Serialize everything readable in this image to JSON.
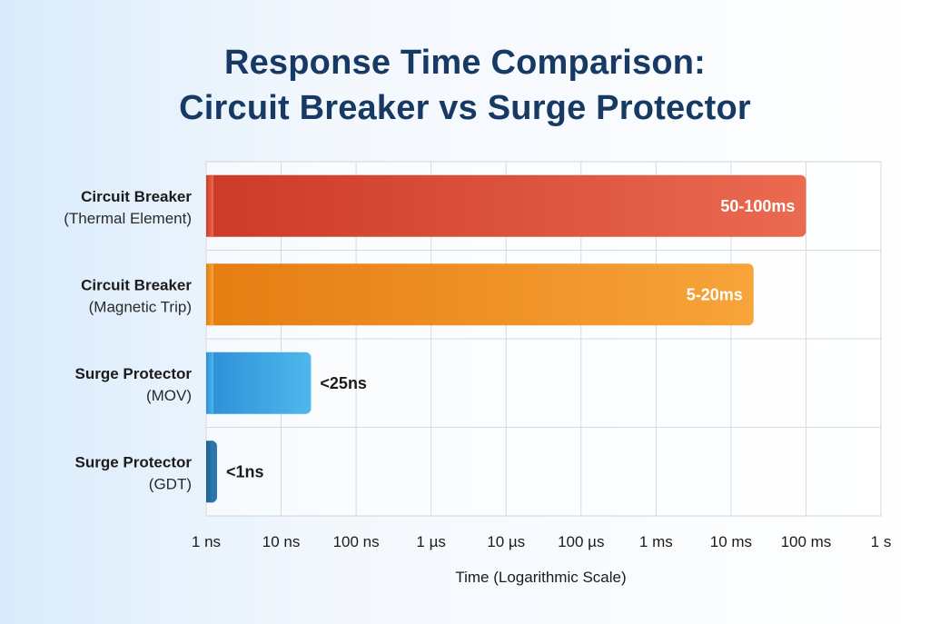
{
  "chart_data": {
    "type": "bar",
    "orientation": "horizontal",
    "title_lines": [
      "Response Time Comparison:",
      "Circuit Breaker vs Surge Protector"
    ],
    "xlabel": "Time (Logarithmic Scale)",
    "ylabel": "",
    "x_scale": "log",
    "x_unit": "seconds",
    "xlim": [
      1e-09,
      1
    ],
    "x_ticks": [
      {
        "value": 1e-09,
        "label": "1 ns"
      },
      {
        "value": 1e-08,
        "label": "10 ns"
      },
      {
        "value": 1e-07,
        "label": "100 ns"
      },
      {
        "value": 1e-06,
        "label": "1 µs"
      },
      {
        "value": 1e-05,
        "label": "10 µs"
      },
      {
        "value": 0.0001,
        "label": "100 µs"
      },
      {
        "value": 0.001,
        "label": "1 ms"
      },
      {
        "value": 0.01,
        "label": "10 ms"
      },
      {
        "value": 0.1,
        "label": "100 ms"
      },
      {
        "value": 1,
        "label": "1 s"
      }
    ],
    "grid": true,
    "categories": [
      {
        "name": "Circuit Breaker",
        "detail": "(Thermal Element)"
      },
      {
        "name": "Circuit Breaker",
        "detail": "(Magnetic Trip)"
      },
      {
        "name": "Surge Protector",
        "detail": "(MOV)"
      },
      {
        "name": "Surge Protector",
        "detail": "(GDT)"
      }
    ],
    "values": [
      0.1,
      0.02,
      2.5e-08,
      1e-09
    ],
    "data_labels": [
      "50-100ms",
      "5-20ms",
      "<25ns",
      "<1ns"
    ],
    "colors": [
      [
        "#cc3a28",
        "#ea6a50"
      ],
      [
        "#e57d12",
        "#f7a43a"
      ],
      [
        "#2d8fd8",
        "#4fb7ec"
      ],
      [
        "#1f5f93",
        "#2f7ab3"
      ]
    ],
    "label_colors": [
      "#ffffff",
      "#ffffff",
      "#1b1b1b",
      "#1b1b1b"
    ]
  }
}
